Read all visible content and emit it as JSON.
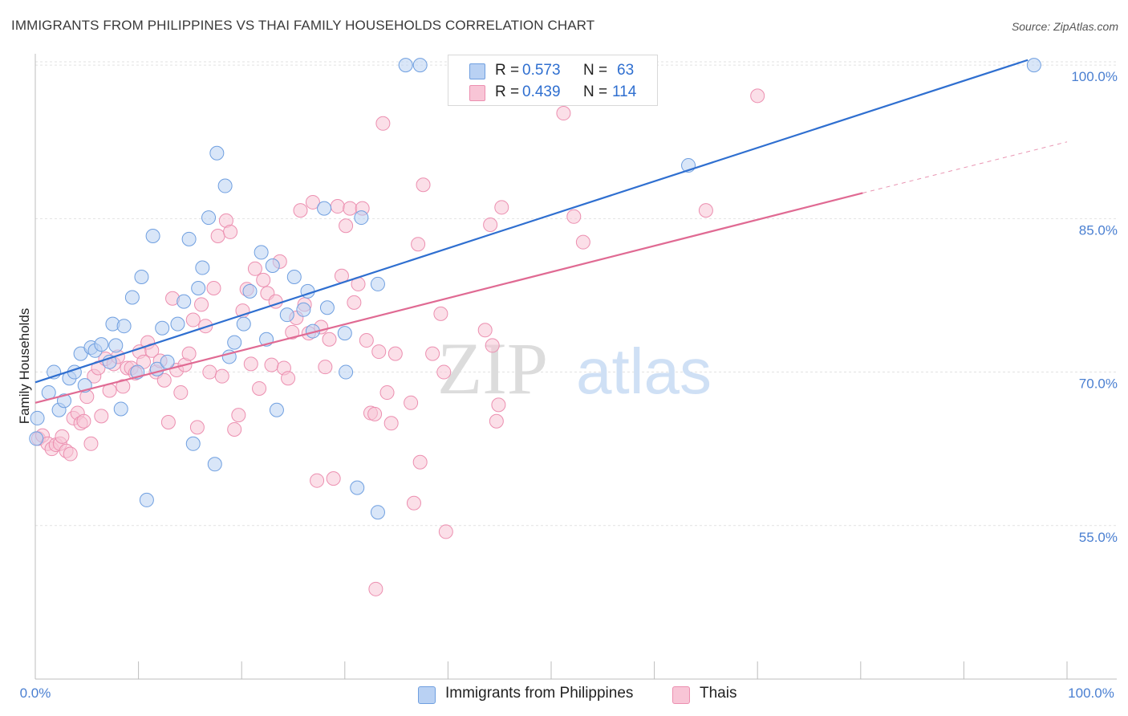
{
  "title": "IMMIGRANTS FROM PHILIPPINES VS THAI FAMILY HOUSEHOLDS CORRELATION CHART",
  "source": "Source: ZipAtlas.com",
  "watermark": {
    "zip": "ZIP",
    "atlas": "atlas"
  },
  "colors": {
    "blue_fill": "#b9d1f3",
    "blue_stroke": "#6f9fe0",
    "blue_line": "#2f6fd0",
    "pink_fill": "#f8c5d6",
    "pink_stroke": "#ec8fb0",
    "pink_line": "#e06a93",
    "axis_text": "#4a7fd1"
  },
  "stats": [
    {
      "r_label": "R =",
      "r_value": "0.573",
      "n_label": "N =",
      "n_value": "63"
    },
    {
      "r_label": "R =",
      "r_value": "0.439",
      "n_label": "N =",
      "n_value": "114"
    }
  ],
  "legend": [
    {
      "label": "Immigrants from Philippines"
    },
    {
      "label": "Thais"
    }
  ],
  "chart_data": {
    "type": "scatter",
    "title": "IMMIGRANTS FROM PHILIPPINES VS THAI FAMILY HOUSEHOLDS CORRELATION CHART",
    "xlabel": "",
    "ylabel": "Family Households",
    "xlim": [
      0,
      100
    ],
    "ylim": [
      40,
      101.5
    ],
    "x_tick_labels": [
      "0.0%",
      "100.0%"
    ],
    "y_ticks": [
      55,
      70,
      85,
      100
    ],
    "y_tick_labels": [
      "55.0%",
      "70.0%",
      "85.0%",
      "100.0%"
    ],
    "grid": true,
    "series": [
      {
        "name": "Immigrants from Philippines",
        "trend": {
          "x0": 0,
          "y0": 69.0,
          "x1": 96.2,
          "y1": 100.5
        },
        "points": [
          [
            0.1,
            63.5
          ],
          [
            0.2,
            65.5
          ],
          [
            1.3,
            68.0
          ],
          [
            1.8,
            70.0
          ],
          [
            2.3,
            66.3
          ],
          [
            2.8,
            67.2
          ],
          [
            3.3,
            69.4
          ],
          [
            3.8,
            70.0
          ],
          [
            4.4,
            71.8
          ],
          [
            4.8,
            68.7
          ],
          [
            5.4,
            72.4
          ],
          [
            5.8,
            72.1
          ],
          [
            6.4,
            72.7
          ],
          [
            7.2,
            71.0
          ],
          [
            7.5,
            74.7
          ],
          [
            7.8,
            72.6
          ],
          [
            8.3,
            66.4
          ],
          [
            8.6,
            74.5
          ],
          [
            9.4,
            77.3
          ],
          [
            9.9,
            70.0
          ],
          [
            10.3,
            79.3
          ],
          [
            10.8,
            57.5
          ],
          [
            11.4,
            83.3
          ],
          [
            11.8,
            70.3
          ],
          [
            12.3,
            74.3
          ],
          [
            12.8,
            71.0
          ],
          [
            13.8,
            74.7
          ],
          [
            14.4,
            76.9
          ],
          [
            14.9,
            83.0
          ],
          [
            15.3,
            63.0
          ],
          [
            15.8,
            78.2
          ],
          [
            16.2,
            80.2
          ],
          [
            16.8,
            85.1
          ],
          [
            17.4,
            61.0
          ],
          [
            17.6,
            91.4
          ],
          [
            18.4,
            88.2
          ],
          [
            18.8,
            71.5
          ],
          [
            19.3,
            72.9
          ],
          [
            20.2,
            74.7
          ],
          [
            20.8,
            77.9
          ],
          [
            21.9,
            81.7
          ],
          [
            22.4,
            73.2
          ],
          [
            23.0,
            80.4
          ],
          [
            23.4,
            66.3
          ],
          [
            24.4,
            75.6
          ],
          [
            25.1,
            79.3
          ],
          [
            26.0,
            76.1
          ],
          [
            26.4,
            77.9
          ],
          [
            26.9,
            74.0
          ],
          [
            28.0,
            86.0
          ],
          [
            28.3,
            76.3
          ],
          [
            30.0,
            73.8
          ],
          [
            30.1,
            70.0
          ],
          [
            31.2,
            58.7
          ],
          [
            31.6,
            85.1
          ],
          [
            33.2,
            78.6
          ],
          [
            33.2,
            56.3
          ],
          [
            35.9,
            100.0
          ],
          [
            37.3,
            100.0
          ],
          [
            63.3,
            90.2
          ],
          [
            96.8,
            100.0
          ]
        ]
      },
      {
        "name": "Thais",
        "trend": {
          "x0": 0,
          "y0": 67.0,
          "x1": 80.2,
          "y1": 87.5
        },
        "trend_extension": {
          "x0": 80.2,
          "y0": 87.5,
          "x1": 100,
          "y1": 92.5
        },
        "points": [
          [
            0.3,
            63.5
          ],
          [
            0.7,
            63.8
          ],
          [
            1.2,
            63.0
          ],
          [
            1.6,
            62.5
          ],
          [
            2.0,
            62.9
          ],
          [
            2.4,
            63.0
          ],
          [
            2.6,
            63.7
          ],
          [
            3.0,
            62.3
          ],
          [
            3.4,
            62.0
          ],
          [
            3.7,
            65.5
          ],
          [
            4.1,
            66.0
          ],
          [
            4.4,
            65.0
          ],
          [
            4.7,
            65.2
          ],
          [
            5.0,
            67.6
          ],
          [
            5.4,
            63.0
          ],
          [
            5.7,
            69.6
          ],
          [
            6.1,
            70.4
          ],
          [
            6.4,
            65.7
          ],
          [
            6.8,
            71.3
          ],
          [
            7.2,
            68.2
          ],
          [
            7.6,
            70.8
          ],
          [
            8.0,
            71.5
          ],
          [
            8.5,
            68.6
          ],
          [
            8.9,
            70.4
          ],
          [
            9.3,
            70.4
          ],
          [
            9.7,
            69.9
          ],
          [
            10.1,
            72.0
          ],
          [
            10.5,
            71.0
          ],
          [
            10.9,
            72.9
          ],
          [
            11.3,
            72.1
          ],
          [
            11.7,
            70.0
          ],
          [
            12.1,
            71.1
          ],
          [
            12.5,
            69.2
          ],
          [
            12.9,
            65.1
          ],
          [
            13.3,
            77.2
          ],
          [
            13.7,
            70.2
          ],
          [
            14.1,
            68.0
          ],
          [
            14.5,
            70.7
          ],
          [
            14.9,
            71.8
          ],
          [
            15.3,
            75.1
          ],
          [
            15.7,
            64.6
          ],
          [
            16.1,
            76.6
          ],
          [
            16.5,
            74.5
          ],
          [
            16.9,
            70.0
          ],
          [
            17.3,
            78.2
          ],
          [
            17.7,
            83.3
          ],
          [
            18.1,
            69.6
          ],
          [
            18.5,
            84.8
          ],
          [
            18.9,
            83.7
          ],
          [
            19.3,
            64.4
          ],
          [
            19.7,
            65.8
          ],
          [
            20.1,
            76.0
          ],
          [
            20.5,
            78.1
          ],
          [
            20.9,
            70.8
          ],
          [
            21.3,
            80.1
          ],
          [
            21.7,
            68.4
          ],
          [
            22.1,
            79.0
          ],
          [
            22.5,
            77.7
          ],
          [
            22.9,
            70.7
          ],
          [
            23.3,
            76.9
          ],
          [
            23.7,
            80.8
          ],
          [
            24.1,
            70.4
          ],
          [
            24.5,
            69.4
          ],
          [
            24.9,
            73.9
          ],
          [
            25.3,
            75.3
          ],
          [
            25.7,
            85.8
          ],
          [
            26.1,
            76.6
          ],
          [
            26.5,
            73.8
          ],
          [
            26.9,
            86.6
          ],
          [
            27.3,
            59.4
          ],
          [
            27.7,
            74.4
          ],
          [
            28.1,
            70.5
          ],
          [
            28.5,
            73.2
          ],
          [
            28.9,
            59.6
          ],
          [
            29.3,
            86.2
          ],
          [
            29.7,
            79.4
          ],
          [
            30.1,
            84.3
          ],
          [
            30.5,
            86.0
          ],
          [
            30.9,
            76.8
          ],
          [
            31.3,
            78.6
          ],
          [
            31.7,
            86.0
          ],
          [
            32.1,
            73.1
          ],
          [
            32.5,
            66.0
          ],
          [
            32.9,
            65.9
          ],
          [
            33.3,
            72.0
          ],
          [
            33.7,
            94.3
          ],
          [
            34.1,
            68.0
          ],
          [
            34.5,
            65.0
          ],
          [
            34.9,
            71.8
          ],
          [
            36.4,
            67.0
          ],
          [
            36.7,
            57.2
          ],
          [
            37.1,
            82.5
          ],
          [
            37.3,
            61.2
          ],
          [
            37.6,
            88.3
          ],
          [
            38.5,
            71.8
          ],
          [
            39.3,
            75.7
          ],
          [
            39.6,
            70.0
          ],
          [
            39.8,
            54.4
          ],
          [
            43.6,
            74.1
          ],
          [
            44.1,
            84.4
          ],
          [
            44.3,
            72.6
          ],
          [
            44.7,
            65.2
          ],
          [
            44.9,
            66.8
          ],
          [
            45.2,
            86.1
          ],
          [
            51.2,
            95.3
          ],
          [
            52.2,
            85.2
          ],
          [
            53.1,
            82.7
          ],
          [
            65.0,
            85.8
          ],
          [
            70.0,
            97.0
          ],
          [
            33.0,
            48.8
          ]
        ]
      }
    ]
  }
}
